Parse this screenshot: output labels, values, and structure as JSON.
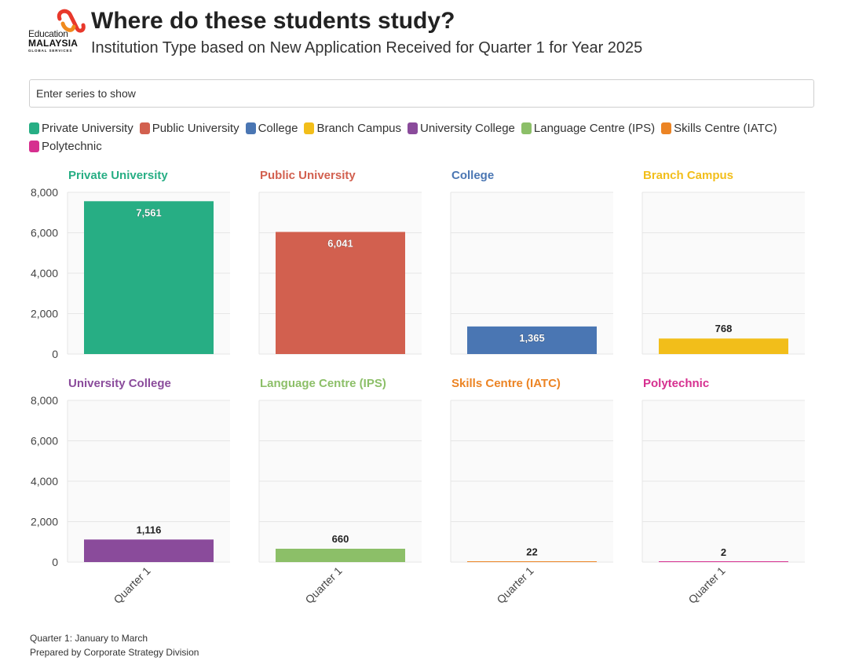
{
  "header": {
    "title": "Where do these students study?",
    "subtitle": "Institution Type based on New Application Received for Quarter 1 for Year 2025",
    "logo": {
      "line1": "Education",
      "line2": "MALAYSIA",
      "line3": "GLOBAL SERVICES",
      "colors": [
        "#e8382b",
        "#f08a1c"
      ]
    }
  },
  "search": {
    "placeholder": "Enter series to show"
  },
  "footer": {
    "note1": "Quarter 1: January to March",
    "note2": "Prepared by Corporate Strategy Division"
  },
  "chart_data": {
    "type": "bar",
    "layout": "small-multiples",
    "title": "Where do these students study?",
    "subtitle": "Institution Type based on New Application Received for Quarter 1 for Year 2025",
    "categories": [
      "Quarter 1"
    ],
    "ylim": [
      0,
      8000
    ],
    "yticks": [
      0,
      2000,
      4000,
      6000,
      8000
    ],
    "ytick_labels": [
      "0",
      "2,000",
      "4,000",
      "6,000",
      "8,000"
    ],
    "grid": true,
    "legend_position": "top",
    "series": [
      {
        "name": "Private University",
        "color": "#27ae84",
        "values": [
          7561
        ],
        "label": "7,561"
      },
      {
        "name": "Public University",
        "color": "#d2604f",
        "values": [
          6041
        ],
        "label": "6,041"
      },
      {
        "name": "College",
        "color": "#4a76b3",
        "values": [
          1365
        ],
        "label": "1,365"
      },
      {
        "name": "Branch Campus",
        "color": "#f2be1a",
        "values": [
          768
        ],
        "label": "768"
      },
      {
        "name": "University College",
        "color": "#8a4b9b",
        "values": [
          1116
        ],
        "label": "1,116"
      },
      {
        "name": "Language Centre (IPS)",
        "color": "#8cbf68",
        "values": [
          660
        ],
        "label": "660"
      },
      {
        "name": "Skills Centre (IATC)",
        "color": "#ec8424",
        "values": [
          22
        ],
        "label": "22"
      },
      {
        "name": "Polytechnic",
        "color": "#d62f8f",
        "values": [
          2
        ],
        "label": "2"
      }
    ]
  }
}
